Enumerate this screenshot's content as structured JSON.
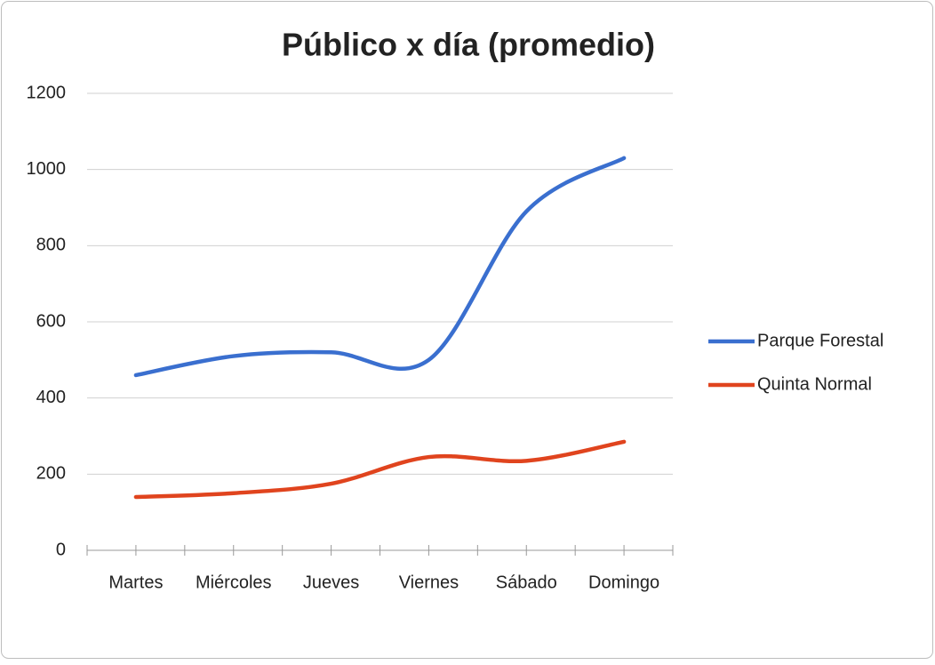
{
  "chart_data": {
    "type": "line",
    "title": "Público x día (promedio)",
    "categories": [
      "Martes",
      "Miércoles",
      "Jueves",
      "Viernes",
      "Sábado",
      "Domingo"
    ],
    "series": [
      {
        "name": "Parque Forestal",
        "color": "#3a6fcf",
        "values": [
          460,
          510,
          520,
          500,
          890,
          1030
        ]
      },
      {
        "name": "Quinta Normal",
        "color": "#e0441e",
        "values": [
          140,
          150,
          175,
          245,
          235,
          285
        ]
      }
    ],
    "ylim": [
      0,
      1200
    ],
    "yticks": [
      0,
      200,
      400,
      600,
      800,
      1000,
      1200
    ],
    "grid": true,
    "smooth": true,
    "legend": "right"
  }
}
